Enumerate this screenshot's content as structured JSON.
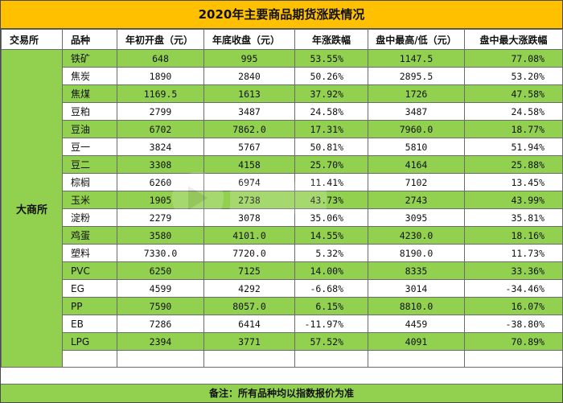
{
  "title": "2020年主要商品期货涨跌情况",
  "headers": [
    "交易所",
    "品种",
    "年初开盘（元）",
    "年底收盘（元）",
    "年涨跌幅",
    "盘中最高/低（元）",
    "盘中最大涨跌幅"
  ],
  "exchange": "大商所",
  "rows": [
    {
      "product": "铁矿",
      "open": "648",
      "close": "995",
      "change": "53.55%",
      "extreme": "1147.5",
      "max_change": "77.08%",
      "highlight": true
    },
    {
      "product": "焦炭",
      "open": "1890",
      "close": "2840",
      "change": "50.26%",
      "extreme": "2895.5",
      "max_change": "53.20%",
      "highlight": false
    },
    {
      "product": "焦煤",
      "open": "1169.5",
      "close": "1613",
      "change": "37.92%",
      "extreme": "1726",
      "max_change": "47.58%",
      "highlight": true
    },
    {
      "product": "豆粕",
      "open": "2799",
      "close": "3487",
      "change": "24.58%",
      "extreme": "3487",
      "max_change": "24.58%",
      "highlight": false
    },
    {
      "product": "豆油",
      "open": "6702",
      "close": "7862.0",
      "change": "17.31%",
      "extreme": "7960.0",
      "max_change": "18.77%",
      "highlight": true
    },
    {
      "product": "豆一",
      "open": "3824",
      "close": "5767",
      "change": "50.81%",
      "extreme": "5810",
      "max_change": "51.94%",
      "highlight": false
    },
    {
      "product": "豆二",
      "open": "3308",
      "close": "4158",
      "change": "25.70%",
      "extreme": "4164",
      "max_change": "25.88%",
      "highlight": true
    },
    {
      "product": "棕榈",
      "open": "6260",
      "close": "6974",
      "change": "11.41%",
      "extreme": "7102",
      "max_change": "13.45%",
      "highlight": false
    },
    {
      "product": "玉米",
      "open": "1905",
      "close": "2738",
      "change": "43.73%",
      "extreme": "2743",
      "max_change": "43.99%",
      "highlight": true
    },
    {
      "product": "淀粉",
      "open": "2279",
      "close": "3078",
      "change": "35.06%",
      "extreme": "3095",
      "max_change": "35.81%",
      "highlight": false
    },
    {
      "product": "鸡蛋",
      "open": "3580",
      "close": "4101.0",
      "change": "14.55%",
      "extreme": "4230.0",
      "max_change": "18.16%",
      "highlight": true
    },
    {
      "product": "塑料",
      "open": "7330.0",
      "close": "7720.0",
      "change": "5.32%",
      "extreme": "8190.0",
      "max_change": "11.73%",
      "highlight": false
    },
    {
      "product": "PVC",
      "open": "6250",
      "close": "7125",
      "change": "14.00%",
      "extreme": "8335",
      "max_change": "33.36%",
      "highlight": true
    },
    {
      "product": "EG",
      "open": "4599",
      "close": "4292",
      "change": "-6.68%",
      "extreme": "3014",
      "max_change": "-34.46%",
      "highlight": false
    },
    {
      "product": "PP",
      "open": "7590",
      "close": "8057.0",
      "change": "6.15%",
      "extreme": "8810.0",
      "max_change": "16.07%",
      "highlight": true
    },
    {
      "product": "EB",
      "open": "7286",
      "close": "6414",
      "change": "-11.97%",
      "extreme": "4459",
      "max_change": "-38.80%",
      "highlight": false
    },
    {
      "product": "LPG",
      "open": "2394",
      "close": "3771",
      "change": "57.52%",
      "extreme": "4091",
      "max_change": "70.89%",
      "highlight": true
    }
  ],
  "footnote": "备注：所有品种均以指数报价为准",
  "colors": {
    "title_bg": "#ffc000",
    "highlight_row": "#92d050",
    "plain_row": "#ffffff"
  }
}
